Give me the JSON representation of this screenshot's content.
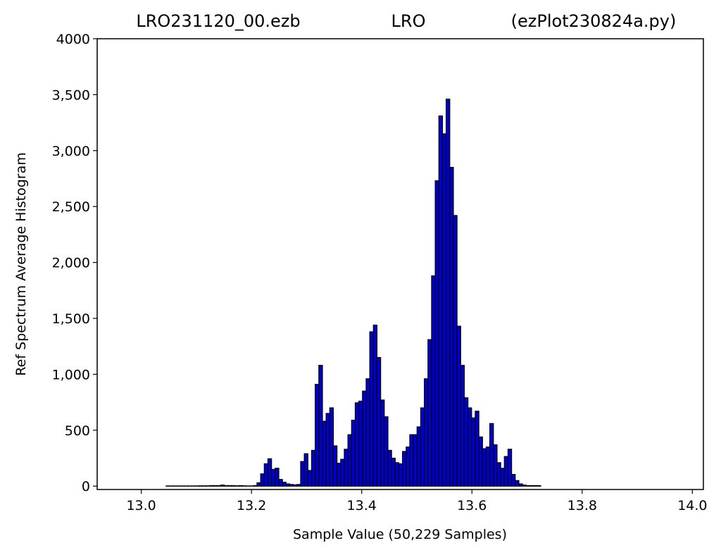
{
  "header": {
    "title_left": "LRO231120_00.ezb",
    "title_center": "LRO",
    "title_right": "(ezPlot230824a.py)"
  },
  "chart_data": {
    "type": "bar",
    "xlabel": "Sample Value (50,229 Samples)",
    "ylabel": "Ref Spectrum Average Histogram",
    "xlim": [
      12.92,
      14.02
    ],
    "ylim": [
      -30,
      4000
    ],
    "xticks": [
      13.0,
      13.2,
      13.4,
      13.6,
      13.8,
      14.0
    ],
    "xtick_labels": [
      "13.0",
      "13.2",
      "13.4",
      "13.6",
      "13.8",
      "14.0"
    ],
    "yticks": [
      0,
      500,
      1000,
      1500,
      2000,
      2500,
      3000,
      3500,
      4000
    ],
    "ytick_labels": [
      "0",
      "500",
      "1,000",
      "1,500",
      "2,000",
      "2,500",
      "3,000",
      "3,500",
      "4000"
    ],
    "grid": false,
    "bar_color": "#0000cc",
    "edge_color": "#000000",
    "bin_start": 13.045,
    "bin_width": 0.0066,
    "values": [
      2,
      2,
      2,
      2,
      2,
      2,
      2,
      2,
      2,
      3,
      3,
      3,
      5,
      5,
      4,
      10,
      5,
      5,
      5,
      3,
      5,
      3,
      2,
      2,
      5,
      30,
      110,
      200,
      245,
      150,
      160,
      60,
      35,
      20,
      15,
      12,
      15,
      220,
      290,
      140,
      320,
      910,
      1080,
      580,
      650,
      700,
      360,
      205,
      240,
      330,
      460,
      590,
      745,
      760,
      850,
      960,
      1380,
      1440,
      1150,
      770,
      620,
      320,
      250,
      210,
      200,
      310,
      350,
      460,
      460,
      530,
      700,
      960,
      1310,
      1880,
      2730,
      3310,
      3150,
      3460,
      2850,
      2420,
      1430,
      1080,
      790,
      700,
      610,
      670,
      440,
      335,
      350,
      560,
      370,
      210,
      160,
      265,
      330,
      105,
      50,
      20,
      10,
      5,
      5,
      5,
      5
    ]
  }
}
